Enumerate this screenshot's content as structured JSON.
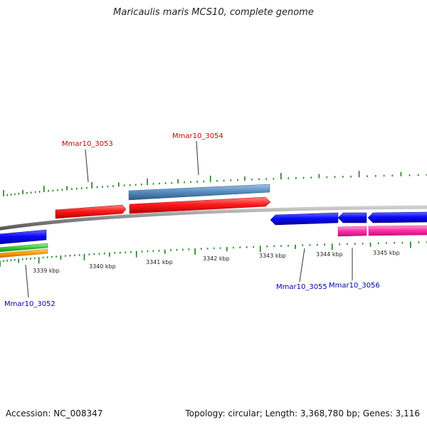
{
  "title": "Maricaulis maris MCS10, complete genome",
  "footer": {
    "accession": "Accession: NC_008347",
    "summary": "Topology: circular; Length: 3,368,780 bp; Genes: 3,116"
  },
  "colors": {
    "backbone": "#8a8a8a",
    "tick": "#1a7f1a",
    "forward_cds": "#ff0000",
    "forward_gene": "#4f83b5",
    "reverse_cds": "#0000ff",
    "reverse_misc": "#ff2aa8",
    "green_feature": "#33cc33",
    "orange_feature": "#ff9900",
    "forward_label": "#cc0000",
    "reverse_label": "#0000aa",
    "coordinate_label": "#222222"
  },
  "coordinate_labels": [
    "3339 kbp",
    "3340 kbp",
    "3341 kbp",
    "3342 kbp",
    "3343 kbp",
    "3344 kbp",
    "3345 kbp"
  ],
  "gene_labels": [
    {
      "text": "Mmar10_3053",
      "strand": "forward"
    },
    {
      "text": "Mmar10_3054",
      "strand": "forward"
    },
    {
      "text": "Mmar10_3052",
      "strand": "reverse"
    },
    {
      "text": "Mmar10_3055",
      "strand": "reverse"
    },
    {
      "text": "Mmar10_3056",
      "strand": "reverse"
    }
  ]
}
